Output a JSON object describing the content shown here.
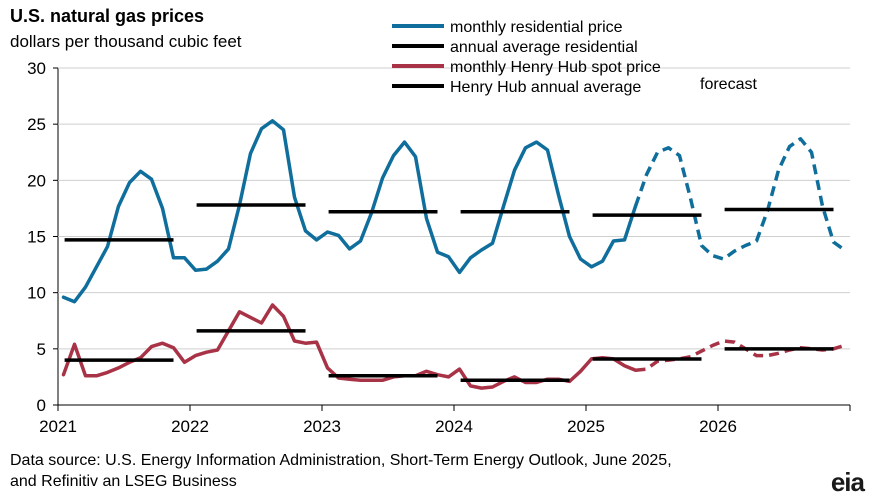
{
  "title": "U.S. natural gas prices",
  "subtitle": "dollars per thousand  cubic feet",
  "source_line1": "Data source: U.S. Energy Information Administration, Short-Term Energy Outlook, June 2025,",
  "source_line2": "and Refinitiv an LSEG Business",
  "logo": "eia",
  "chart_data": {
    "type": "line",
    "ylim": [
      0,
      30
    ],
    "yticks": [
      0,
      5,
      10,
      15,
      20,
      25,
      30
    ],
    "xticks": [
      "2021",
      "2022",
      "2023",
      "2024",
      "2025",
      "2026"
    ],
    "forecast_label": "forecast",
    "forecast_start": "2025-06",
    "colors": {
      "residential": "#0f6e9c",
      "henry_hub": "#a83246",
      "annual": "#000000"
    },
    "legend": [
      {
        "name": "monthly residential price",
        "color": "#0f6e9c"
      },
      {
        "name": "annual average residential",
        "color": "#000000"
      },
      {
        "name": "monthly Henry Hub spot price",
        "color": "#a83246"
      },
      {
        "name": "Henry Hub annual average",
        "color": "#000000"
      }
    ],
    "months_start": "2021-01",
    "monthly_residential": [
      9.6,
      9.2,
      10.5,
      12.3,
      14.1,
      17.7,
      19.8,
      20.8,
      20.1,
      17.5,
      13.1,
      13.1,
      12.0,
      12.1,
      12.8,
      13.9,
      17.8,
      22.4,
      24.6,
      25.3,
      24.5,
      18.5,
      15.5,
      14.7,
      15.4,
      15.1,
      13.9,
      14.6,
      17.1,
      20.2,
      22.2,
      23.4,
      22.1,
      16.6,
      13.6,
      13.2,
      11.8,
      13.1,
      13.8,
      14.4,
      17.7,
      20.9,
      22.9,
      23.4,
      22.7,
      18.7,
      15.0,
      13.0,
      12.3,
      12.8,
      14.6,
      14.7,
      17.7,
      20.5,
      22.5,
      22.9,
      22.2,
      18.4,
      14.2,
      13.3,
      13.0,
      13.7,
      14.2,
      14.6,
      17.3,
      20.9,
      23.0,
      23.7,
      22.5,
      17.7,
      14.5,
      13.8
    ],
    "monthly_henry_hub": [
      2.7,
      5.4,
      2.6,
      2.6,
      2.9,
      3.3,
      3.8,
      4.2,
      5.2,
      5.5,
      5.1,
      3.8,
      4.4,
      4.7,
      4.9,
      6.6,
      8.3,
      7.8,
      7.3,
      8.9,
      7.9,
      5.7,
      5.5,
      5.6,
      3.3,
      2.4,
      2.3,
      2.2,
      2.2,
      2.2,
      2.5,
      2.6,
      2.6,
      3.0,
      2.7,
      2.5,
      3.2,
      1.7,
      1.5,
      1.6,
      2.1,
      2.5,
      2.0,
      2.0,
      2.3,
      2.3,
      2.1,
      3.0,
      4.1,
      4.2,
      4.1,
      3.5,
      3.1,
      3.2,
      3.9,
      4.0,
      4.1,
      4.3,
      4.8,
      5.3,
      5.7,
      5.6,
      5.0,
      4.4,
      4.4,
      4.6,
      4.9,
      5.1,
      5.0,
      4.9,
      5.0,
      5.3
    ],
    "annual_residential": [
      14.7,
      17.8,
      17.2,
      17.2,
      16.9,
      17.4
    ],
    "annual_henry_hub": [
      4.0,
      6.6,
      2.6,
      2.2,
      4.1,
      5.0
    ]
  }
}
